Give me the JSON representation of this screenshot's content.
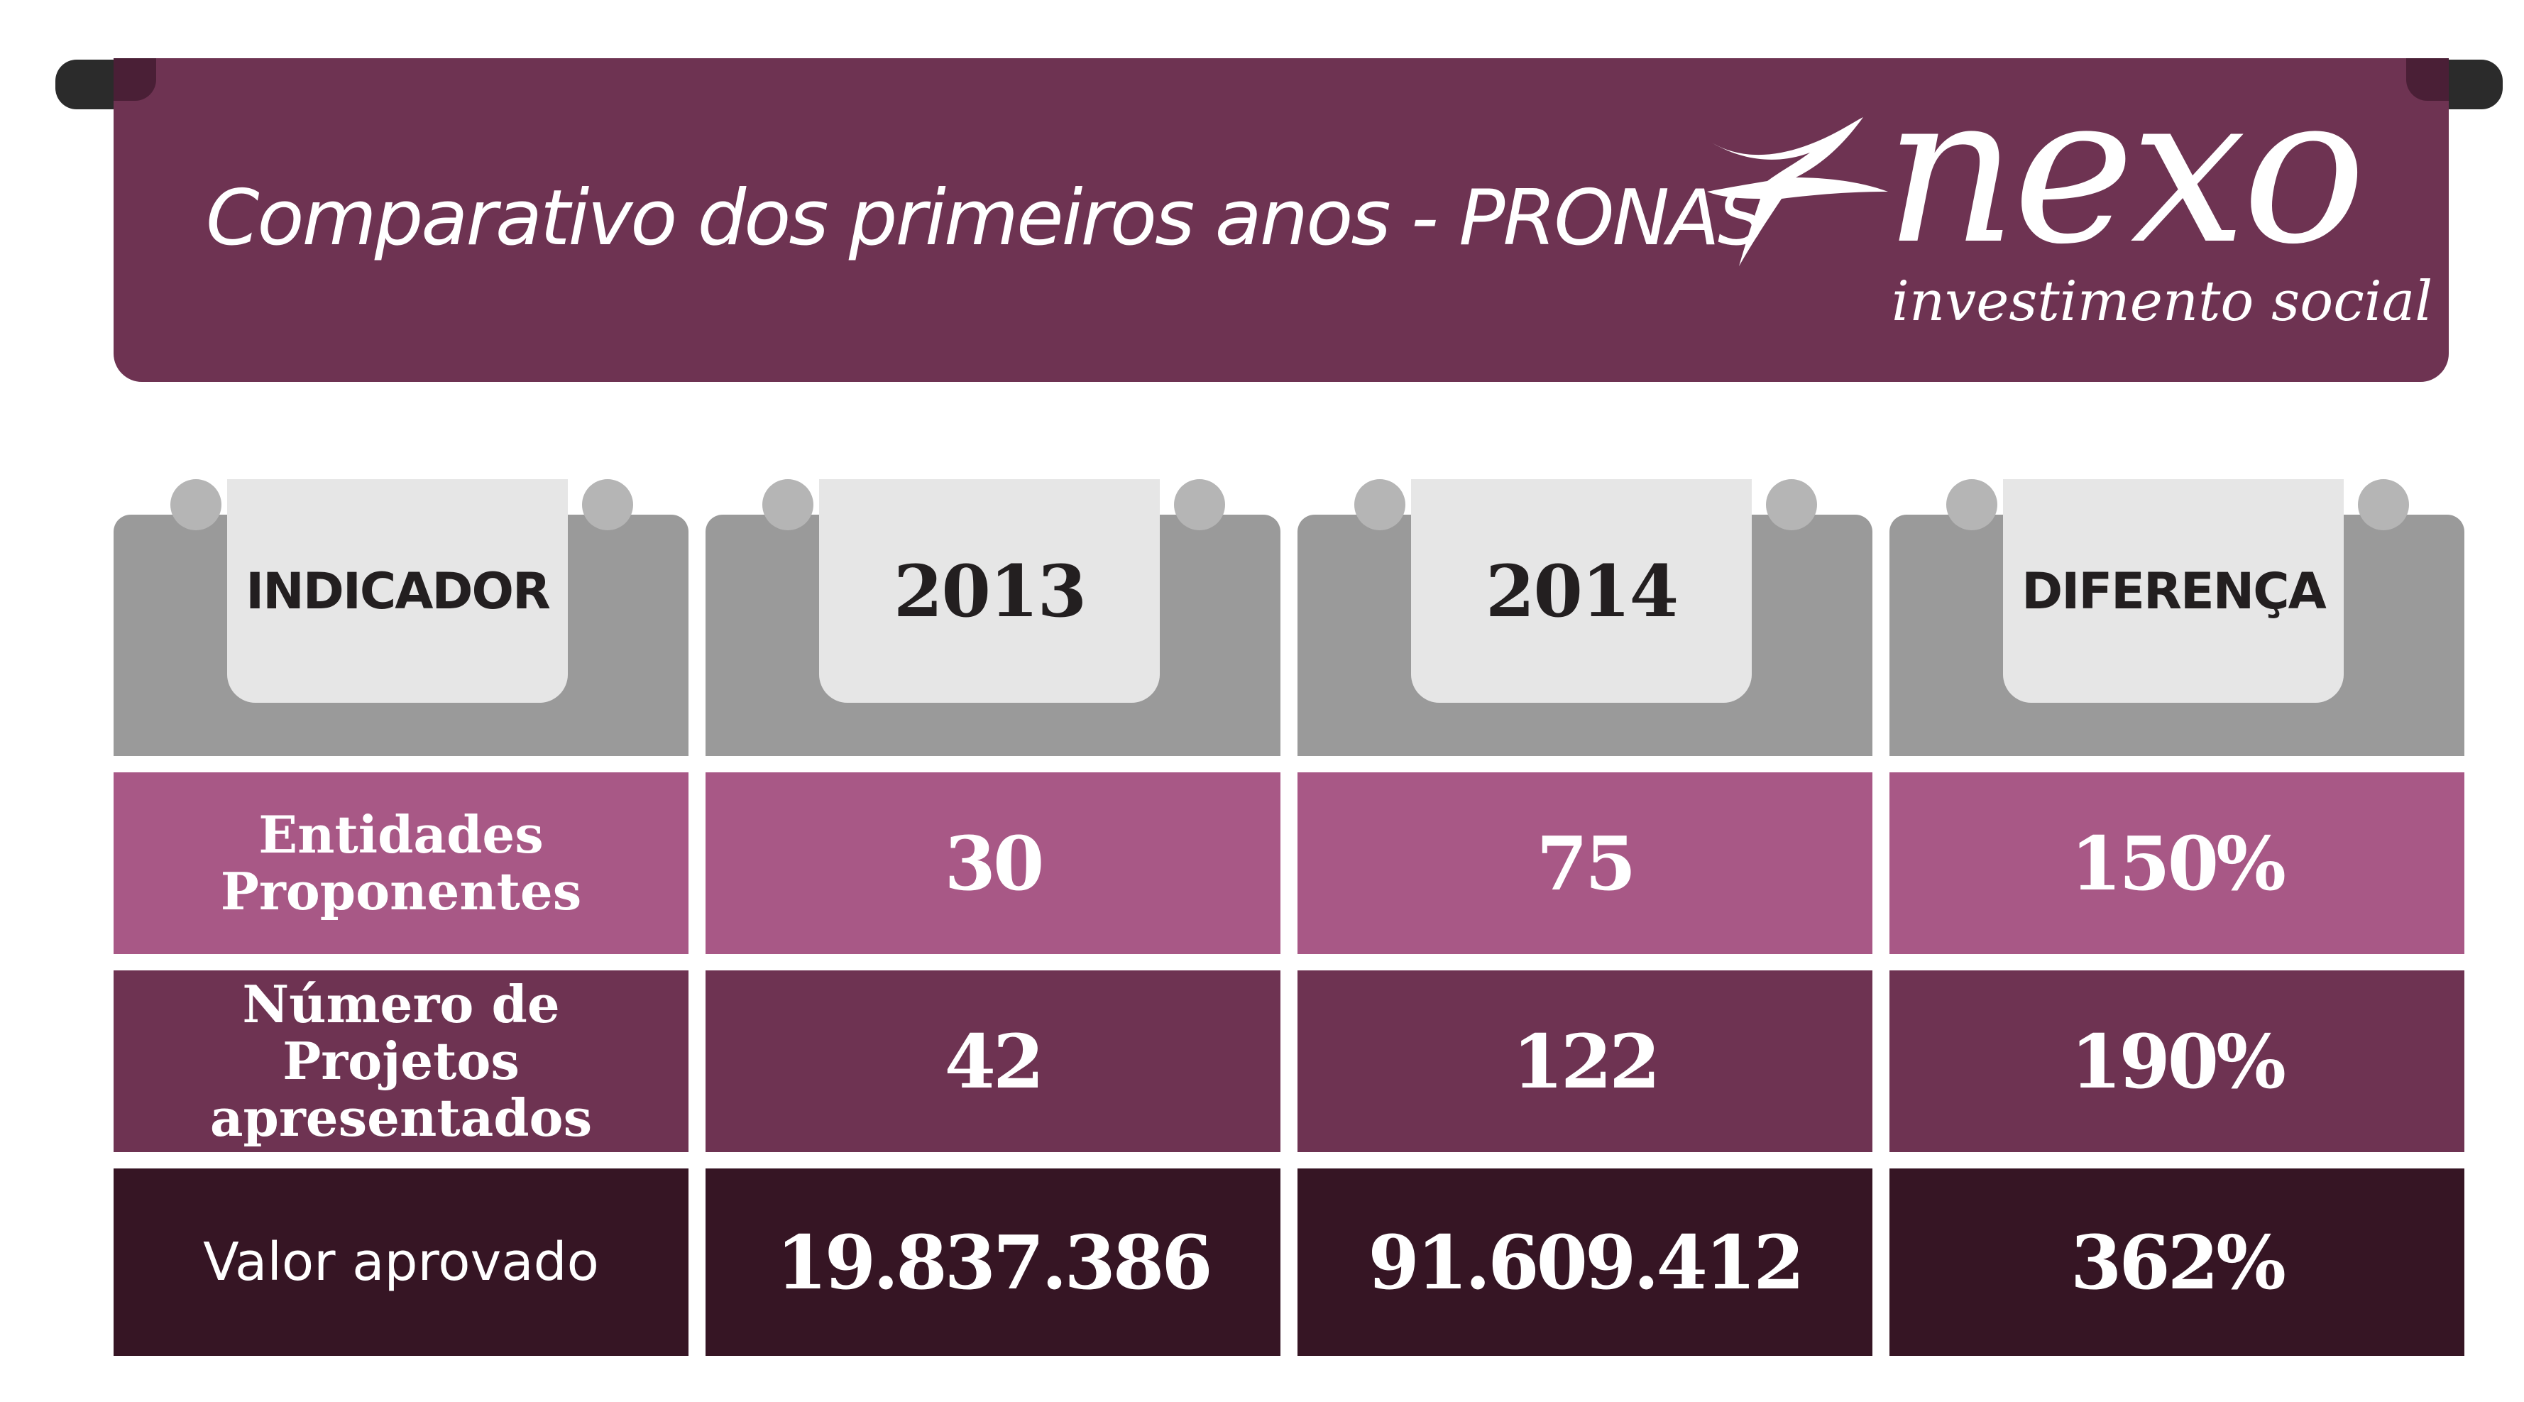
{
  "header": {
    "title": "Comparativo dos primeiros anos - PRONAS",
    "logo": {
      "word": "nexo",
      "subtitle": "investimento social"
    },
    "colors": {
      "banner": "#6e3352",
      "roll": "#2b2b2b"
    }
  },
  "table": {
    "columns": [
      "INDICADOR",
      "2013",
      "2014",
      "DIFERENÇA"
    ],
    "rows": [
      {
        "indicator_line1": "Entidades",
        "indicator_line2": "Proponentes",
        "v2013": "30",
        "v2014": "75",
        "diff": "150%",
        "color": "#a85886"
      },
      {
        "indicator_line1": "Número de Projetos",
        "indicator_line2": "apresentados",
        "v2013": "42",
        "v2014": "122",
        "diff": "190%",
        "color": "#6e3352"
      },
      {
        "indicator_line1": "Valor aprovado",
        "v2013": "19.837.386",
        "v2014": "91.609.412",
        "diff": "362%",
        "color": "#361524"
      }
    ]
  }
}
